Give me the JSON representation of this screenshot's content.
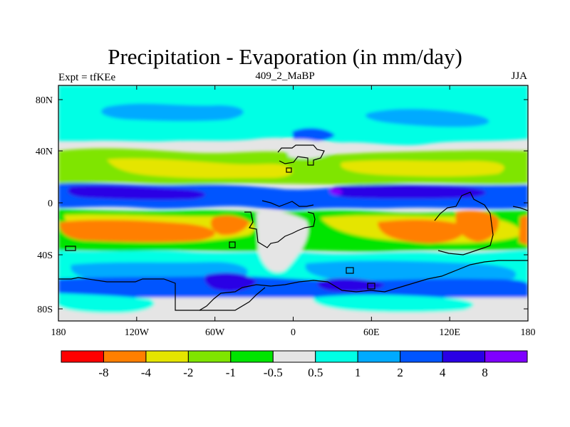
{
  "title": "Precipitation - Evaporation (in mm/day)",
  "left_label": "Expt = tfKEe",
  "center_label": "409_2_MaBP",
  "right_label": "JJA",
  "y_ticks": [
    "80N",
    "40N",
    "0",
    "40S",
    "80S"
  ],
  "x_ticks": [
    "180",
    "120W",
    "60W",
    "0",
    "60E",
    "120E",
    "180"
  ],
  "colorbar": {
    "labels": [
      "-8",
      "-4",
      "-2",
      "-1",
      "-0.5",
      "0.5",
      "1",
      "2",
      "4",
      "8"
    ],
    "colors": [
      "#ff0000",
      "#ff7f00",
      "#e5e500",
      "#7fe500",
      "#00e500",
      "#e5e5e5",
      "#00ffe5",
      "#00aaff",
      "#0055ff",
      "#2a00e5",
      "#7f00ff"
    ]
  },
  "palette": {
    "gray": "#e5e5e5",
    "aqua": "#00ffe5",
    "sky": "#00aaff",
    "blue": "#0055ff",
    "indigo": "#2a00e5",
    "violet": "#7f00ff",
    "green": "#00e500",
    "lime": "#7fe500",
    "yellow": "#e5e500",
    "orange": "#ff7f00",
    "red": "#ff0000"
  }
}
